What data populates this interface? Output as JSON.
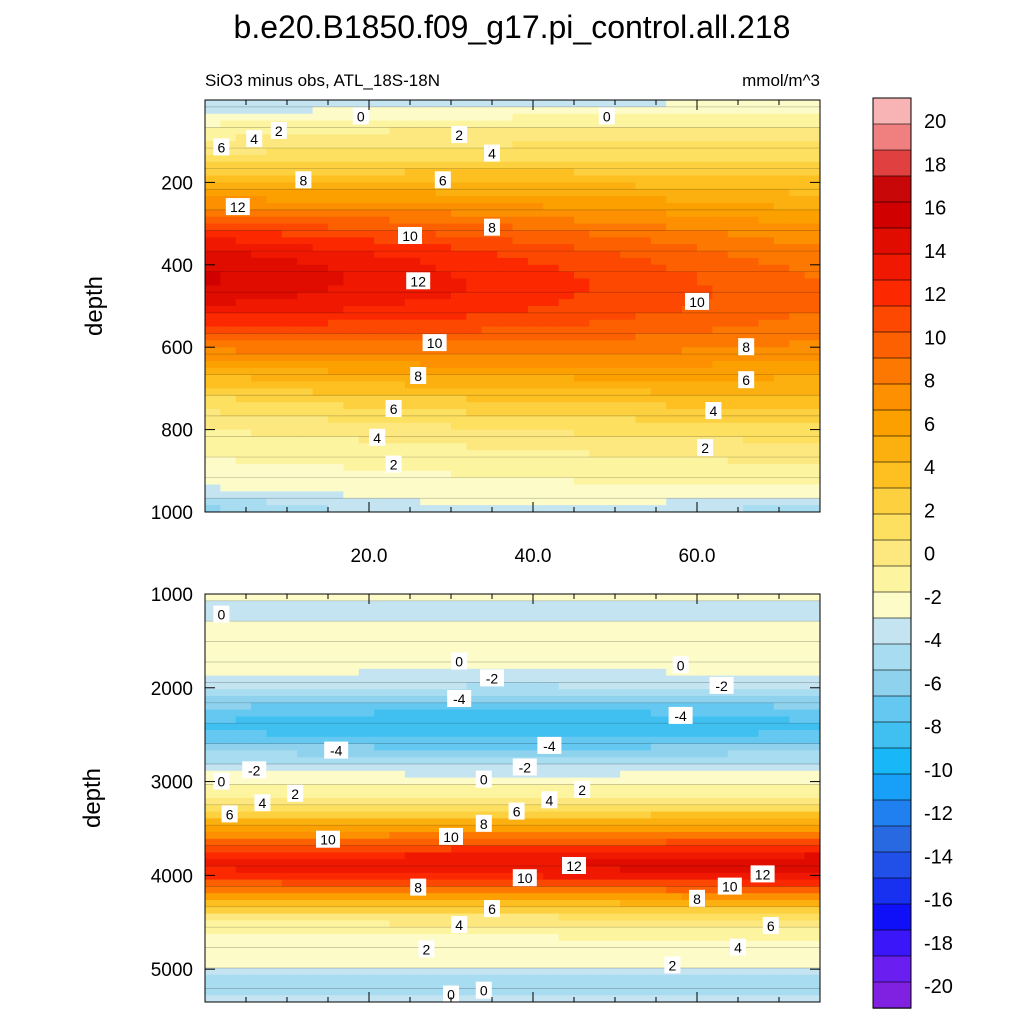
{
  "chart_data": {
    "type": "heatmap",
    "title": "b.e20.B1850.f09_g17.pi_control.all.218",
    "subtitle_left": "SiO3 minus obs, ATL_18S-18N",
    "subtitle_right": "mmol/m^3",
    "ylabel": "depth",
    "colorbar": {
      "levels": [
        -20,
        -18,
        -16,
        -14,
        -12,
        -10,
        -8,
        -6,
        -4,
        -2,
        0,
        2,
        4,
        6,
        8,
        10,
        12,
        14,
        16,
        18,
        20
      ],
      "tick_labels": [
        "20",
        "18",
        "16",
        "14",
        "12",
        "10",
        "8",
        "6",
        "4",
        "2",
        "0",
        "-2",
        "-4",
        "-6",
        "-8",
        "-10",
        "-12",
        "-14",
        "-16",
        "-18",
        "-20"
      ],
      "colors": [
        "#8020e0",
        "#6a1ef0",
        "#3a16f8",
        "#1010f8",
        "#1830f0",
        "#2050e8",
        "#2868e0",
        "#2080f0",
        "#18a0f8",
        "#18b8f8",
        "#40c0f0",
        "#64c8f0",
        "#8ed2ee",
        "#a8dcf0",
        "#c4e4f2",
        "#fdfcc8",
        "#fdf4a0",
        "#fde880",
        "#fde060",
        "#fdd040",
        "#fdc020",
        "#fcb010",
        "#fca000",
        "#fc9000",
        "#fc7800",
        "#fc6000",
        "#fc4800",
        "#fc2800",
        "#f01800",
        "#e00c00",
        "#d00000",
        "#c80808",
        "#e04040",
        "#f08080",
        "#f8b4b4"
      ]
    },
    "panels": [
      {
        "name": "upper",
        "x_ticks": [
          20,
          40,
          60
        ],
        "x_tick_labels": [
          "20.0",
          "40.0",
          "60.0"
        ],
        "xlim": [
          0,
          75
        ],
        "ylim": [
          1000,
          0
        ],
        "y_ticks": [
          200,
          400,
          600,
          800,
          1000
        ],
        "y_tick_labels": [
          "200",
          "400",
          "600",
          "800",
          "1000"
        ],
        "contour_labels": [
          {
            "x": 19,
            "depth": 40,
            "text": "0"
          },
          {
            "x": 49,
            "depth": 40,
            "text": "0"
          },
          {
            "x": 6,
            "depth": 95,
            "text": "4"
          },
          {
            "x": 9,
            "depth": 75,
            "text": "2"
          },
          {
            "x": 2,
            "depth": 115,
            "text": "6"
          },
          {
            "x": 31,
            "depth": 85,
            "text": "2"
          },
          {
            "x": 35,
            "depth": 130,
            "text": "4"
          },
          {
            "x": 29,
            "depth": 195,
            "text": "6"
          },
          {
            "x": 12,
            "depth": 195,
            "text": "8"
          },
          {
            "x": 4,
            "depth": 260,
            "text": "12"
          },
          {
            "x": 25,
            "depth": 330,
            "text": "10"
          },
          {
            "x": 35,
            "depth": 310,
            "text": "8"
          },
          {
            "x": 26,
            "depth": 440,
            "text": "12"
          },
          {
            "x": 60,
            "depth": 490,
            "text": "10"
          },
          {
            "x": 28,
            "depth": 590,
            "text": "10"
          },
          {
            "x": 66,
            "depth": 600,
            "text": "8"
          },
          {
            "x": 26,
            "depth": 670,
            "text": "8"
          },
          {
            "x": 66,
            "depth": 680,
            "text": "6"
          },
          {
            "x": 23,
            "depth": 750,
            "text": "6"
          },
          {
            "x": 62,
            "depth": 755,
            "text": "4"
          },
          {
            "x": 21,
            "depth": 820,
            "text": "4"
          },
          {
            "x": 61,
            "depth": 845,
            "text": "2"
          },
          {
            "x": 23,
            "depth": 885,
            "text": "2"
          }
        ]
      },
      {
        "name": "lower",
        "ylim": [
          5350,
          1000
        ],
        "xlim": [
          0,
          75
        ],
        "y_ticks": [
          1000,
          2000,
          3000,
          4000,
          5000
        ],
        "y_tick_labels": [
          "1000",
          "2000",
          "3000",
          "4000",
          "5000"
        ],
        "contour_labels": [
          {
            "x": 2,
            "depth": 1220,
            "text": "0"
          },
          {
            "x": 31,
            "depth": 1720,
            "text": "0"
          },
          {
            "x": 58,
            "depth": 1760,
            "text": "0"
          },
          {
            "x": 35,
            "depth": 1900,
            "text": "-2"
          },
          {
            "x": 63,
            "depth": 1980,
            "text": "-2"
          },
          {
            "x": 31,
            "depth": 2120,
            "text": "-4"
          },
          {
            "x": 58,
            "depth": 2300,
            "text": "-4"
          },
          {
            "x": 16,
            "depth": 2670,
            "text": "-4"
          },
          {
            "x": 42,
            "depth": 2620,
            "text": "-4"
          },
          {
            "x": 6,
            "depth": 2880,
            "text": "-2"
          },
          {
            "x": 39,
            "depth": 2850,
            "text": "-2"
          },
          {
            "x": 2,
            "depth": 3000,
            "text": "0"
          },
          {
            "x": 34,
            "depth": 2980,
            "text": "0"
          },
          {
            "x": 11,
            "depth": 3130,
            "text": "2"
          },
          {
            "x": 46,
            "depth": 3090,
            "text": "2"
          },
          {
            "x": 7,
            "depth": 3230,
            "text": "4"
          },
          {
            "x": 42,
            "depth": 3200,
            "text": "4"
          },
          {
            "x": 3,
            "depth": 3350,
            "text": "6"
          },
          {
            "x": 38,
            "depth": 3320,
            "text": "6"
          },
          {
            "x": 34,
            "depth": 3450,
            "text": "8"
          },
          {
            "x": 15,
            "depth": 3620,
            "text": "10"
          },
          {
            "x": 30,
            "depth": 3590,
            "text": "10"
          },
          {
            "x": 45,
            "depth": 3900,
            "text": "12"
          },
          {
            "x": 68,
            "depth": 3990,
            "text": "12"
          },
          {
            "x": 39,
            "depth": 4030,
            "text": "10"
          },
          {
            "x": 64,
            "depth": 4120,
            "text": "10"
          },
          {
            "x": 26,
            "depth": 4130,
            "text": "8"
          },
          {
            "x": 60,
            "depth": 4250,
            "text": "8"
          },
          {
            "x": 35,
            "depth": 4360,
            "text": "6"
          },
          {
            "x": 69,
            "depth": 4540,
            "text": "6"
          },
          {
            "x": 31,
            "depth": 4530,
            "text": "4"
          },
          {
            "x": 65,
            "depth": 4770,
            "text": "4"
          },
          {
            "x": 27,
            "depth": 4790,
            "text": "2"
          },
          {
            "x": 57,
            "depth": 4960,
            "text": "2"
          },
          {
            "x": 34,
            "depth": 5230,
            "text": "0"
          },
          {
            "x": 30,
            "depth": 5270,
            "text": "0"
          }
        ]
      }
    ]
  }
}
